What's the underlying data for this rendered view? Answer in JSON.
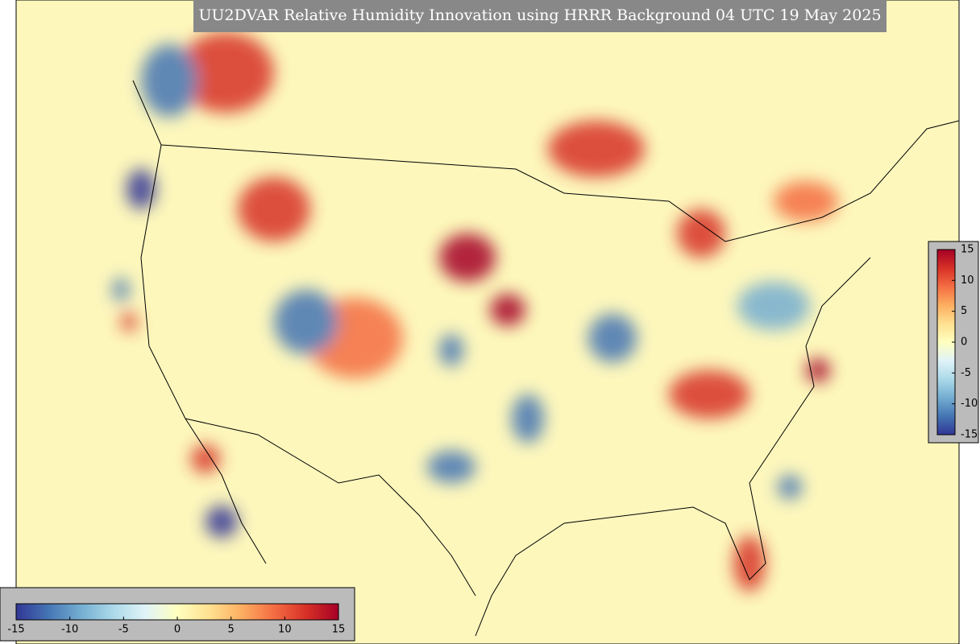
{
  "title": "UU2DVAR Relative Humidity Innovation using HRRR Background 04 UTC 19 May 2025",
  "colormap": [
    "#313695",
    "#4575b4",
    "#74add1",
    "#abd9e9",
    "#e0f3f8",
    "#ffffbf",
    "#fee090",
    "#fdae61",
    "#f46d43",
    "#d73027",
    "#a50026"
  ],
  "colorbars": [
    {
      "orientation": "horizontal",
      "limits": [
        -15,
        15
      ],
      "ticks": [
        -15,
        -10,
        -5,
        0,
        5,
        10,
        15
      ]
    },
    {
      "orientation": "vertical",
      "limits": [
        -15,
        15
      ],
      "ticks": [
        15,
        10,
        5,
        0,
        -5,
        -10,
        -15
      ]
    }
  ]
}
